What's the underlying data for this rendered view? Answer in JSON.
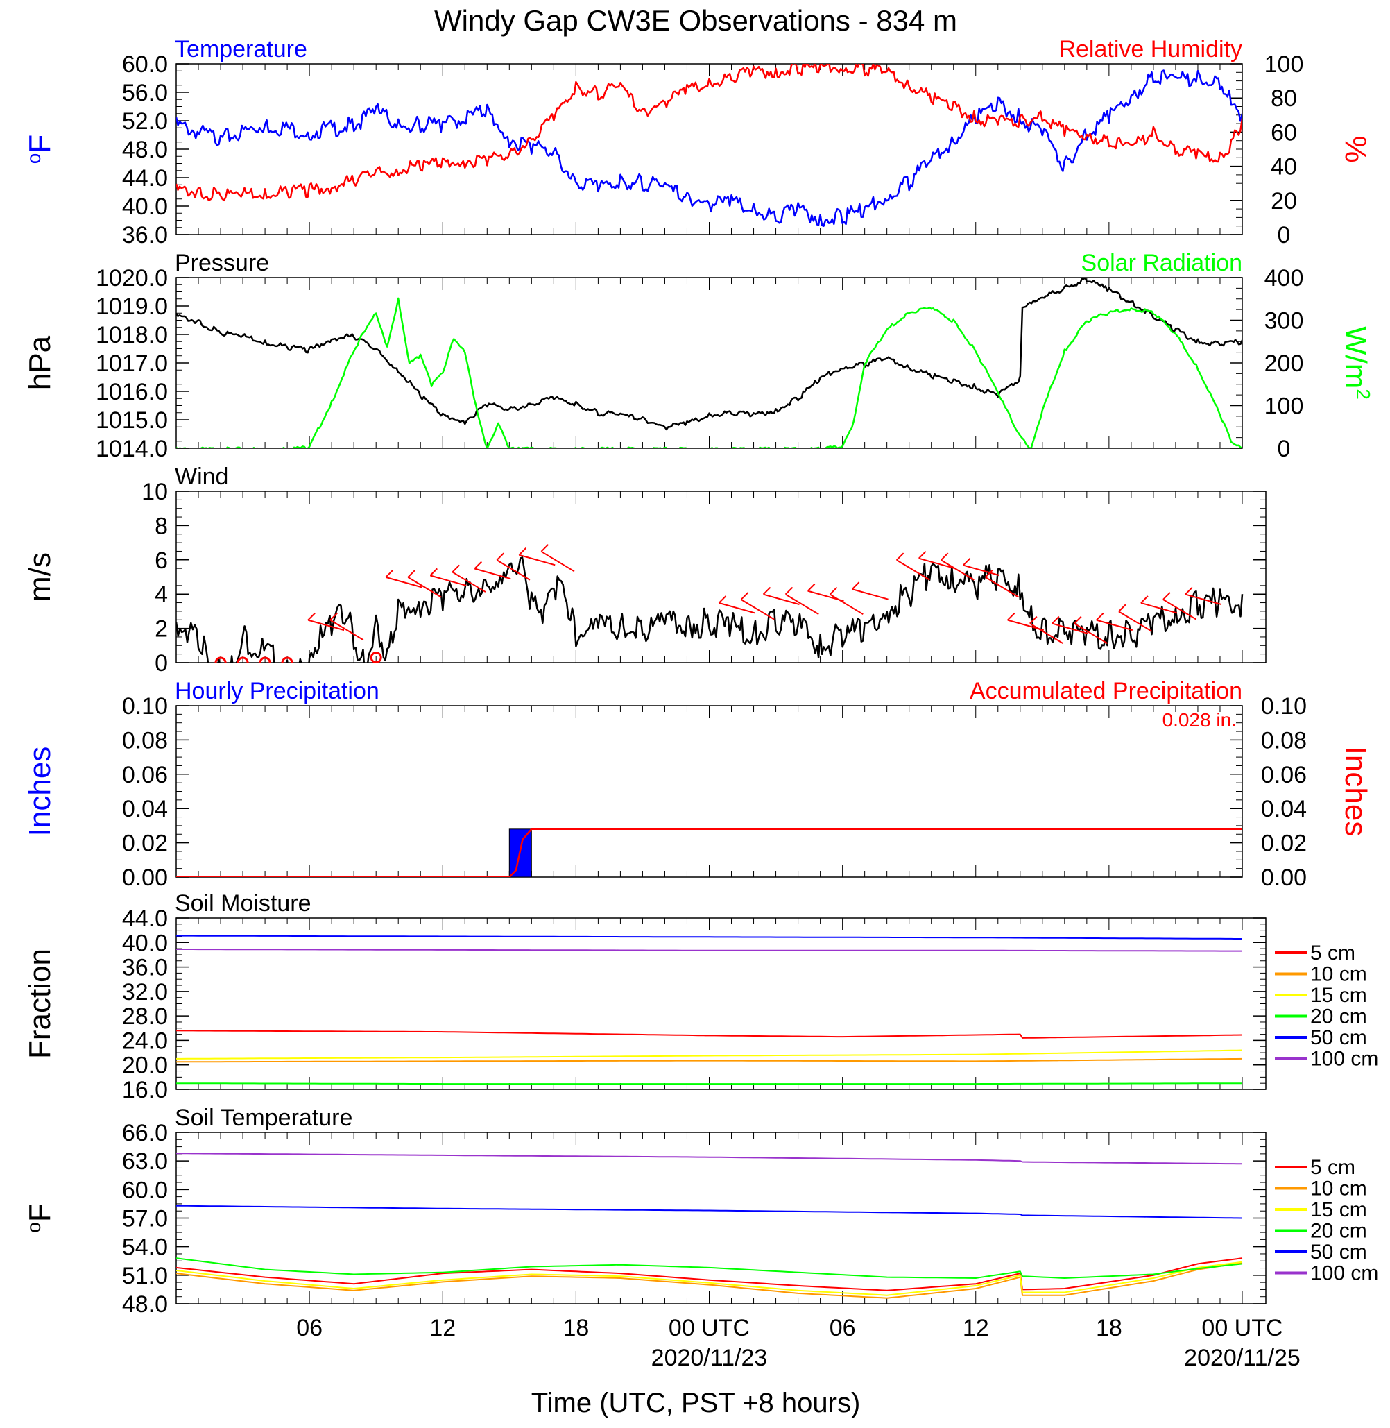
{
  "figure": {
    "title": "Windy Gap CW3E Observations - 834 m",
    "xlabel": "Time (UTC, PST +8 hours)",
    "x_ticks": [
      "06",
      "12",
      "18",
      "00 UTC",
      "06",
      "12",
      "18",
      "00 UTC"
    ],
    "x_dates": [
      "2020/11/23",
      "2020/11/25"
    ]
  },
  "chart_data": [
    {
      "type": "line",
      "left_title": "Temperature",
      "right_title": "Relative Humidity",
      "left_unit": "oF",
      "right_unit": "%",
      "left_ticks": [
        "60.0",
        "56.0",
        "52.0",
        "48.0",
        "44.0",
        "40.0",
        "36.0"
      ],
      "right_ticks": [
        "100",
        "80",
        "60",
        "40",
        "20",
        "0"
      ],
      "ylim_left": [
        36,
        60
      ],
      "ylim_right": [
        0,
        100
      ],
      "series": [
        {
          "color": "#0000ff",
          "axis": "left",
          "x": [
            0,
            2,
            4,
            6,
            8,
            9,
            10,
            11,
            12,
            14,
            15,
            16,
            17,
            18,
            19,
            20,
            21,
            22,
            23,
            24,
            25,
            26,
            27,
            28,
            29,
            30,
            31,
            32,
            33,
            34,
            35,
            36,
            37,
            38,
            39,
            40,
            41,
            42,
            43,
            44,
            45,
            46,
            47,
            47.5,
            48
          ],
          "y": [
            52,
            50,
            52,
            51,
            52,
            54,
            52,
            52,
            52,
            54,
            50,
            49,
            48,
            44,
            43,
            44,
            44,
            43,
            42,
            41,
            41,
            40,
            39,
            40,
            39,
            39,
            40,
            42,
            44,
            47,
            50,
            53,
            55,
            53,
            51,
            46,
            51,
            53,
            56,
            59,
            58,
            59,
            58,
            56,
            53
          ]
        },
        {
          "color": "#ff0000",
          "axis": "right",
          "x": [
            0,
            1,
            2,
            3,
            4,
            5,
            6,
            7,
            8,
            9,
            10,
            11,
            12,
            13,
            14,
            15,
            16,
            17,
            18,
            19,
            20,
            21,
            22,
            23,
            24,
            25,
            26,
            27,
            28,
            29,
            30,
            31,
            32,
            33,
            34,
            35,
            36,
            37,
            38,
            39,
            40,
            41,
            42,
            43,
            44,
            45,
            46,
            47,
            47.5,
            48
          ],
          "y": [
            28,
            27,
            25,
            26,
            27,
            27,
            28,
            30,
            34,
            38,
            40,
            42,
            44,
            45,
            46,
            48,
            58,
            70,
            88,
            85,
            88,
            74,
            80,
            86,
            90,
            94,
            97,
            98,
            99,
            100,
            100,
            99,
            97,
            90,
            82,
            77,
            70,
            68,
            68,
            72,
            62,
            60,
            57,
            52,
            63,
            52,
            48,
            46,
            55,
            68
          ]
        }
      ]
    },
    {
      "type": "line",
      "left_title": "Pressure",
      "right_title": "Solar Radiation",
      "left_unit": "hPa",
      "right_unit": "W/m2",
      "left_ticks": [
        "1020.0",
        "1019.0",
        "1018.0",
        "1017.0",
        "1016.0",
        "1015.0",
        "1014.0"
      ],
      "right_ticks": [
        "400",
        "300",
        "200",
        "100",
        "0"
      ],
      "ylim_left": [
        1014,
        1020
      ],
      "ylim_right": [
        0,
        400
      ],
      "series": [
        {
          "color": "#000000",
          "axis": "left",
          "x": [
            0,
            1,
            2,
            3,
            4,
            5,
            6,
            7,
            8,
            9,
            10,
            11,
            12,
            13,
            14,
            15,
            16,
            17,
            18,
            19,
            20,
            21,
            22,
            23,
            24,
            25,
            26,
            27,
            28,
            29,
            30,
            31,
            32,
            33,
            34,
            35,
            36,
            37,
            38,
            38.1,
            39,
            40,
            41,
            42,
            43,
            44,
            45,
            46,
            47,
            48
          ],
          "y": [
            1018.7,
            1018.5,
            1018.1,
            1018.0,
            1017.8,
            1017.6,
            1017.5,
            1017.9,
            1018.0,
            1017.5,
            1016.8,
            1015.9,
            1015.2,
            1015.0,
            1015.6,
            1015.4,
            1015.6,
            1015.8,
            1015.6,
            1015.3,
            1015.2,
            1015.1,
            1014.8,
            1014.9,
            1015.2,
            1015.3,
            1015.2,
            1015.4,
            1015.8,
            1016.5,
            1016.9,
            1017.0,
            1017.2,
            1016.9,
            1016.6,
            1016.4,
            1016.2,
            1015.9,
            1016.5,
            1019.0,
            1019.3,
            1019.7,
            1020.0,
            1019.6,
            1019.2,
            1018.7,
            1018.2,
            1017.8,
            1017.7,
            1017.8
          ]
        },
        {
          "color": "#00ff00",
          "axis": "right",
          "x": [
            0,
            5,
            6,
            7,
            8,
            8.5,
            9,
            9.5,
            10,
            10.5,
            11,
            11.5,
            12,
            12.5,
            13,
            13.5,
            14,
            14.5,
            15,
            15.5,
            29,
            30,
            30.5,
            31,
            32,
            33,
            34,
            35,
            36,
            37,
            38,
            38.5,
            39,
            40,
            41,
            42,
            43,
            44,
            45,
            46,
            47,
            47.5,
            48
          ],
          "y": [
            0,
            0,
            5,
            110,
            230,
            280,
            320,
            240,
            350,
            200,
            220,
            150,
            180,
            260,
            230,
            100,
            0,
            60,
            0,
            0,
            0,
            5,
            60,
            200,
            280,
            320,
            330,
            300,
            230,
            130,
            30,
            0,
            90,
            230,
            300,
            320,
            330,
            320,
            270,
            190,
            80,
            20,
            0
          ]
        }
      ]
    },
    {
      "type": "line",
      "left_title": "Wind",
      "left_unit": "m/s",
      "left_ticks": [
        "10",
        "8",
        "6",
        "4",
        "2",
        "0"
      ],
      "ylim": [
        0,
        10
      ],
      "series": [
        {
          "color": "#000000",
          "x": [
            0,
            0.5,
            1,
            1.5,
            2,
            2.5,
            3,
            5,
            5.5,
            6,
            6.5,
            7,
            7.5,
            8,
            8.5,
            9,
            9.5,
            10,
            11,
            12,
            13,
            14,
            14.5,
            15,
            15.5,
            16,
            16.5,
            17,
            17.5,
            18,
            19,
            20,
            21,
            22,
            23,
            24,
            25,
            26,
            27,
            28,
            29,
            30,
            31,
            32,
            33,
            34,
            35,
            36,
            37,
            38,
            38.5,
            39,
            40,
            41,
            42,
            43,
            44,
            45,
            46,
            47,
            48
          ],
          "y": [
            2,
            1.8,
            2.2,
            0,
            0,
            0.3,
            2,
            0,
            0,
            0,
            1.8,
            2.5,
            3.5,
            2,
            0,
            3,
            0.5,
            3.5,
            4,
            4.3,
            4.5,
            5,
            5.5,
            6,
            6.2,
            4,
            2.5,
            5,
            4.5,
            2,
            2.5,
            2.5,
            2.3,
            2.5,
            2.8,
            2.7,
            2.5,
            2,
            2.8,
            2.5,
            1.5,
            2,
            2.3,
            3.5,
            4.5,
            5.8,
            5.5,
            5,
            5.5,
            5,
            3,
            2.3,
            2.5,
            2,
            2.2,
            2,
            2.5,
            3.5,
            3.8,
            4,
            4
          ]
        },
        {
          "type": "scatter",
          "name": "calm",
          "color": "#ff0000",
          "x": [
            2,
            3,
            4,
            5,
            9
          ],
          "y": [
            0,
            0,
            0,
            0,
            0.3
          ]
        },
        {
          "type": "barbs",
          "color": "#ff0000",
          "x": [
            6.5,
            7.5,
            10,
            11,
            12,
            13,
            14,
            15,
            16,
            17,
            25,
            26,
            27,
            28,
            29,
            30,
            31,
            33,
            34,
            35,
            36,
            37,
            38,
            39,
            40,
            41,
            42,
            43,
            44,
            45,
            46
          ],
          "y": [
            2,
            2,
            4.5,
            4.5,
            4.6,
            4.8,
            5,
            5.5,
            5.8,
            6,
            3,
            3.2,
            3.5,
            3.5,
            3.7,
            3.5,
            3.8,
            5.5,
            5.6,
            5.5,
            5.2,
            4.5,
            2,
            1.8,
            1.8,
            1.8,
            2,
            2.5,
            3,
            3.2,
            3.5
          ]
        }
      ]
    },
    {
      "type": "bar",
      "left_title": "Hourly Precipitation",
      "right_title": "Accumulated Precipitation",
      "annotation": "0.028 in.",
      "left_unit": "Inches",
      "right_unit": "Inches",
      "left_ticks": [
        "0.10",
        "0.08",
        "0.06",
        "0.04",
        "0.02",
        "0.00"
      ],
      "right_ticks": [
        "0.10",
        "0.08",
        "0.06",
        "0.04",
        "0.02",
        "0.00"
      ],
      "ylim": [
        0,
        0.1
      ],
      "hourly": [
        {
          "x": 15,
          "value": 0.028
        }
      ],
      "accumulated": {
        "color": "#ff0000",
        "x": [
          0,
          15,
          15.3,
          15.6,
          16,
          48
        ],
        "y": [
          0,
          0,
          0.004,
          0.022,
          0.028,
          0.028
        ]
      }
    },
    {
      "type": "line",
      "left_title": "Soil Moisture",
      "left_unit": "Fraction",
      "left_ticks": [
        "44.0",
        "40.0",
        "36.0",
        "32.0",
        "28.0",
        "24.0",
        "20.0",
        "16.0"
      ],
      "ylim": [
        16,
        44
      ],
      "legend": [
        "5 cm",
        "10 cm",
        "15 cm",
        "20 cm",
        "50 cm",
        "100 cm"
      ],
      "series": [
        {
          "name": "5 cm",
          "color": "#ff0000",
          "x": [
            0,
            12,
            24,
            30,
            38,
            38.1,
            48
          ],
          "y": [
            25.6,
            25.4,
            24.8,
            24.6,
            25.0,
            24.4,
            24.9
          ]
        },
        {
          "name": "10 cm",
          "color": "#ff9900",
          "x": [
            0,
            12,
            24,
            36,
            48
          ],
          "y": [
            20.5,
            20.6,
            20.7,
            20.6,
            21.0
          ]
        },
        {
          "name": "15 cm",
          "color": "#ffff00",
          "x": [
            0,
            12,
            24,
            36,
            48
          ],
          "y": [
            21.0,
            21.2,
            21.5,
            21.7,
            22.4
          ]
        },
        {
          "name": "20 cm",
          "color": "#00ff00",
          "x": [
            0,
            12,
            24,
            36,
            48
          ],
          "y": [
            17.0,
            16.9,
            16.9,
            16.9,
            17.0
          ]
        },
        {
          "name": "50 cm",
          "color": "#0000ff",
          "x": [
            0,
            12,
            24,
            36,
            48
          ],
          "y": [
            41.1,
            41.0,
            40.9,
            40.8,
            40.6
          ]
        },
        {
          "name": "100 cm",
          "color": "#9933cc",
          "x": [
            0,
            12,
            24,
            36,
            48
          ],
          "y": [
            38.9,
            38.8,
            38.7,
            38.7,
            38.6
          ]
        }
      ]
    },
    {
      "type": "line",
      "left_title": "Soil Temperature",
      "left_unit": "oF",
      "left_ticks": [
        "66.0",
        "63.0",
        "60.0",
        "57.0",
        "54.0",
        "51.0",
        "48.0"
      ],
      "ylim": [
        48,
        66
      ],
      "legend": [
        "5 cm",
        "10 cm",
        "15 cm",
        "20 cm",
        "50 cm",
        "100 cm"
      ],
      "series": [
        {
          "name": "5 cm",
          "color": "#ff0000",
          "x": [
            0,
            4,
            8,
            12,
            16,
            20,
            24,
            28,
            32,
            36,
            38,
            38.1,
            40,
            44,
            46,
            48
          ],
          "y": [
            51.8,
            50.8,
            50.1,
            51.2,
            51.6,
            51.2,
            50.5,
            49.9,
            49.4,
            50.1,
            51.2,
            49.5,
            49.6,
            51.0,
            52.2,
            52.8
          ]
        },
        {
          "name": "10 cm",
          "color": "#ff9900",
          "x": [
            0,
            4,
            8,
            12,
            16,
            20,
            24,
            28,
            32,
            36,
            38,
            38.1,
            40,
            44,
            46,
            48
          ],
          "y": [
            51.2,
            50.1,
            49.4,
            50.3,
            50.9,
            50.7,
            50.0,
            49.1,
            48.6,
            49.6,
            50.8,
            48.9,
            48.9,
            50.4,
            51.6,
            52.3
          ]
        },
        {
          "name": "15 cm",
          "color": "#ffff00",
          "x": [
            0,
            4,
            8,
            12,
            16,
            20,
            24,
            28,
            32,
            36,
            38,
            38.1,
            40,
            44,
            46,
            48
          ],
          "y": [
            51.5,
            50.4,
            49.6,
            50.5,
            51.1,
            50.9,
            50.2,
            49.4,
            48.9,
            49.9,
            51.0,
            49.2,
            49.2,
            50.7,
            51.8,
            52.4
          ]
        },
        {
          "name": "20 cm",
          "color": "#00ff00",
          "x": [
            0,
            4,
            8,
            12,
            16,
            20,
            24,
            28,
            32,
            36,
            38,
            38.1,
            40,
            44,
            46,
            48
          ],
          "y": [
            52.8,
            51.6,
            51.1,
            51.3,
            51.9,
            52.1,
            51.8,
            51.3,
            50.8,
            50.7,
            51.4,
            50.9,
            50.7,
            51.1,
            51.7,
            52.2
          ]
        },
        {
          "name": "50 cm",
          "color": "#0000ff",
          "x": [
            0,
            12,
            24,
            36,
            38,
            38.1,
            48
          ],
          "y": [
            58.3,
            58.0,
            57.8,
            57.5,
            57.4,
            57.3,
            57.0
          ]
        },
        {
          "name": "100 cm",
          "color": "#9933cc",
          "x": [
            0,
            12,
            24,
            36,
            38,
            38.1,
            48
          ],
          "y": [
            63.8,
            63.6,
            63.4,
            63.1,
            63.0,
            62.9,
            62.7
          ]
        }
      ]
    }
  ]
}
